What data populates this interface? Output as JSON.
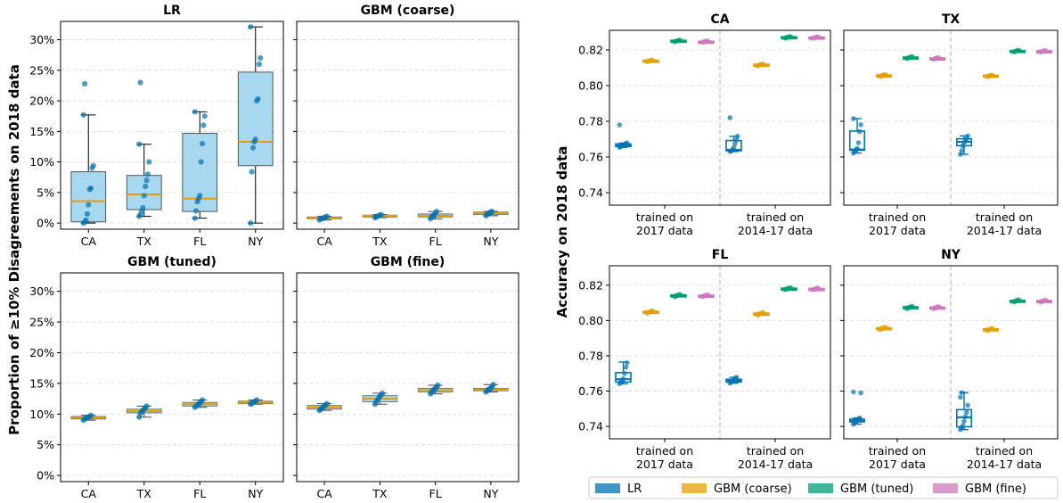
{
  "colors": {
    "lr": "#0173B2",
    "lr_fill": "#A8D8F0",
    "gbm_coarse": "#E69F00",
    "gbm_tuned": "#029E73",
    "gbm_fine": "#CC78BC",
    "median": "#E69F00",
    "grid": "#d8d8d8",
    "divider": "#b0b0b0"
  },
  "left": {
    "ylabel": "Proportion of ≥10% Disagreements on 2018 data",
    "yticks": [
      "0%",
      "5%",
      "10%",
      "15%",
      "20%",
      "25%",
      "30%"
    ],
    "categories": [
      "CA",
      "TX",
      "FL",
      "NY"
    ]
  },
  "right": {
    "ylabel": "Accuracy on 2018 data",
    "groups": [
      [
        "trained on",
        "2017 data"
      ],
      [
        "trained on",
        "2014-17 data"
      ]
    ],
    "yticks_top": [
      "0.74",
      "0.76",
      "0.78",
      "0.80",
      "0.82"
    ],
    "yticks_bottom": [
      "0.74",
      "0.76",
      "0.78",
      "0.80",
      "0.82"
    ]
  },
  "legend": [
    {
      "label": "LR",
      "color": "#0173B2"
    },
    {
      "label": "GBM (coarse)",
      "color": "#E69F00"
    },
    {
      "label": "GBM (tuned)",
      "color": "#029E73"
    },
    {
      "label": "GBM (fine)",
      "color": "#CC78BC"
    }
  ],
  "chart_data": [
    {
      "type": "box",
      "title": "LR",
      "ylabel": "Proportion of ≥10% Disagreements on 2018 data",
      "ylim": [
        -0.01,
        0.33
      ],
      "categories": [
        "CA",
        "TX",
        "FL",
        "NY"
      ],
      "boxes": [
        {
          "q1": 0.002,
          "median": 0.036,
          "q3": 0.084,
          "whislo": 0.0,
          "whishi": 0.177,
          "points": [
            0.0,
            0.002,
            0.005,
            0.015,
            0.03,
            0.055,
            0.057,
            0.09,
            0.094,
            0.177,
            0.228
          ]
        },
        {
          "q1": 0.022,
          "median": 0.047,
          "q3": 0.078,
          "whislo": 0.011,
          "whishi": 0.129,
          "points": [
            0.011,
            0.014,
            0.02,
            0.025,
            0.045,
            0.06,
            0.07,
            0.08,
            0.1,
            0.129,
            0.23
          ]
        },
        {
          "q1": 0.019,
          "median": 0.04,
          "q3": 0.147,
          "whislo": 0.008,
          "whishi": 0.182,
          "points": [
            0.008,
            0.02,
            0.035,
            0.04,
            0.045,
            0.1,
            0.13,
            0.16,
            0.175,
            0.182
          ]
        },
        {
          "q1": 0.094,
          "median": 0.133,
          "q3": 0.247,
          "whislo": 0.0,
          "whishi": 0.321,
          "points": [
            0.0,
            0.084,
            0.123,
            0.133,
            0.137,
            0.2,
            0.203,
            0.26,
            0.27,
            0.321
          ]
        }
      ]
    },
    {
      "type": "box",
      "title": "GBM (coarse)",
      "ylim": [
        -0.01,
        0.33
      ],
      "categories": [
        "CA",
        "TX",
        "FL",
        "NY"
      ],
      "boxes": [
        {
          "q1": 0.007,
          "median": 0.008,
          "q3": 0.01,
          "whislo": 0.005,
          "whishi": 0.011,
          "points": [
            0.005,
            0.007,
            0.008,
            0.008,
            0.009,
            0.01,
            0.011
          ]
        },
        {
          "q1": 0.01,
          "median": 0.012,
          "q3": 0.013,
          "whislo": 0.009,
          "whishi": 0.014,
          "points": [
            0.009,
            0.01,
            0.011,
            0.012,
            0.013,
            0.014
          ]
        },
        {
          "q1": 0.01,
          "median": 0.012,
          "q3": 0.015,
          "whislo": 0.007,
          "whishi": 0.019,
          "points": [
            0.007,
            0.01,
            0.012,
            0.013,
            0.016,
            0.019
          ]
        },
        {
          "q1": 0.014,
          "median": 0.016,
          "q3": 0.018,
          "whislo": 0.012,
          "whishi": 0.019,
          "points": [
            0.012,
            0.014,
            0.016,
            0.017,
            0.018,
            0.019
          ]
        }
      ]
    },
    {
      "type": "box",
      "title": "GBM (tuned)",
      "ylabel": "Proportion of ≥10% Disagreements on 2018 data",
      "ylim": [
        -0.01,
        0.33
      ],
      "categories": [
        "CA",
        "TX",
        "FL",
        "NY"
      ],
      "boxes": [
        {
          "q1": 0.092,
          "median": 0.094,
          "q3": 0.096,
          "whislo": 0.09,
          "whishi": 0.098,
          "points": [
            0.09,
            0.092,
            0.093,
            0.094,
            0.095,
            0.096,
            0.098
          ]
        },
        {
          "q1": 0.102,
          "median": 0.105,
          "q3": 0.108,
          "whislo": 0.095,
          "whishi": 0.113,
          "points": [
            0.095,
            0.101,
            0.104,
            0.106,
            0.108,
            0.11,
            0.113
          ]
        },
        {
          "q1": 0.113,
          "median": 0.116,
          "q3": 0.119,
          "whislo": 0.111,
          "whishi": 0.123,
          "points": [
            0.111,
            0.113,
            0.115,
            0.117,
            0.118,
            0.12,
            0.123
          ]
        },
        {
          "q1": 0.117,
          "median": 0.119,
          "q3": 0.121,
          "whislo": 0.116,
          "whishi": 0.123,
          "points": [
            0.116,
            0.117,
            0.119,
            0.12,
            0.121,
            0.123
          ]
        }
      ]
    },
    {
      "type": "box",
      "title": "GBM (fine)",
      "ylim": [
        -0.01,
        0.33
      ],
      "categories": [
        "CA",
        "TX",
        "FL",
        "NY"
      ],
      "boxes": [
        {
          "q1": 0.108,
          "median": 0.111,
          "q3": 0.114,
          "whislo": 0.106,
          "whishi": 0.117,
          "points": [
            0.106,
            0.108,
            0.11,
            0.112,
            0.113,
            0.115,
            0.117
          ]
        },
        {
          "q1": 0.12,
          "median": 0.125,
          "q3": 0.13,
          "whislo": 0.116,
          "whishi": 0.134,
          "points": [
            0.116,
            0.12,
            0.123,
            0.126,
            0.129,
            0.131,
            0.134
          ]
        },
        {
          "q1": 0.136,
          "median": 0.139,
          "q3": 0.142,
          "whislo": 0.133,
          "whishi": 0.147,
          "points": [
            0.133,
            0.136,
            0.138,
            0.14,
            0.142,
            0.144,
            0.147
          ]
        },
        {
          "q1": 0.138,
          "median": 0.14,
          "q3": 0.142,
          "whislo": 0.136,
          "whishi": 0.148,
          "points": [
            0.136,
            0.138,
            0.14,
            0.141,
            0.142,
            0.145,
            0.148
          ]
        }
      ]
    },
    {
      "type": "box",
      "title": "CA",
      "ylabel": "Accuracy on 2018 data",
      "ylim": [
        0.733,
        0.831
      ],
      "groups": [
        "trained on 2017 data",
        "trained on 2014-17 data"
      ],
      "series": [
        "LR",
        "GBM (coarse)",
        "GBM (tuned)",
        "GBM (fine)"
      ],
      "boxes": [
        [
          {
            "q1": 0.7659,
            "median": 0.7664,
            "q3": 0.7673,
            "whislo": 0.7654,
            "whishi": 0.7678,
            "points": [
              0.7654,
              0.7658,
              0.7661,
              0.7665,
              0.767,
              0.7675,
              0.7678,
              0.778
            ]
          },
          {
            "q1": 0.8136,
            "median": 0.8139,
            "q3": 0.8142,
            "whislo": 0.8134,
            "whishi": 0.8145,
            "points": [
              0.8134,
              0.8137,
              0.8139,
              0.8141,
              0.8144
            ]
          },
          {
            "q1": 0.8248,
            "median": 0.8251,
            "q3": 0.8254,
            "whislo": 0.8246,
            "whishi": 0.8256,
            "points": [
              0.8246,
              0.8249,
              0.8251,
              0.8253,
              0.8256
            ]
          },
          {
            "q1": 0.8244,
            "median": 0.8246,
            "q3": 0.8249,
            "whislo": 0.8242,
            "whishi": 0.8251,
            "points": [
              0.8242,
              0.8245,
              0.8247,
              0.8249,
              0.8251
            ]
          }
        ],
        [
          {
            "q1": 0.7635,
            "median": 0.764,
            "q3": 0.7692,
            "whislo": 0.763,
            "whishi": 0.7716,
            "points": [
              0.763,
              0.7635,
              0.764,
              0.7652,
              0.7675,
              0.7695,
              0.7716,
              0.782
            ]
          },
          {
            "q1": 0.8113,
            "median": 0.8116,
            "q3": 0.812,
            "whislo": 0.811,
            "whishi": 0.8122,
            "points": [
              0.811,
              0.8114,
              0.8116,
              0.8119,
              0.8122
            ]
          },
          {
            "q1": 0.8268,
            "median": 0.8271,
            "q3": 0.8274,
            "whislo": 0.8266,
            "whishi": 0.8276,
            "points": [
              0.8266,
              0.8269,
              0.8271,
              0.8273,
              0.8276
            ]
          },
          {
            "q1": 0.8267,
            "median": 0.8269,
            "q3": 0.8272,
            "whislo": 0.8265,
            "whishi": 0.8274,
            "points": [
              0.8265,
              0.8268,
              0.827,
              0.8272,
              0.8274
            ]
          }
        ]
      ]
    },
    {
      "type": "box",
      "title": "TX",
      "ylim": [
        0.733,
        0.831
      ],
      "groups": [
        "trained on 2017 data",
        "trained on 2014-17 data"
      ],
      "series": [
        "LR",
        "GBM (coarse)",
        "GBM (tuned)",
        "GBM (fine)"
      ],
      "boxes": [
        [
          {
            "q1": 0.7638,
            "median": 0.7642,
            "q3": 0.7745,
            "whislo": 0.7622,
            "whishi": 0.7815,
            "points": [
              0.7622,
              0.7632,
              0.764,
              0.7648,
              0.768,
              0.7742,
              0.7781,
              0.7815
            ]
          },
          {
            "q1": 0.8054,
            "median": 0.8057,
            "q3": 0.806,
            "whislo": 0.8051,
            "whishi": 0.8063,
            "points": [
              0.8051,
              0.8055,
              0.8057,
              0.806,
              0.8063
            ]
          },
          {
            "q1": 0.8154,
            "median": 0.8157,
            "q3": 0.816,
            "whislo": 0.8151,
            "whishi": 0.8163,
            "points": [
              0.8151,
              0.8155,
              0.8157,
              0.816,
              0.8163
            ]
          },
          {
            "q1": 0.815,
            "median": 0.8153,
            "q3": 0.8155,
            "whislo": 0.8148,
            "whishi": 0.8157,
            "points": [
              0.8148,
              0.8151,
              0.8153,
              0.8155,
              0.8157
            ]
          }
        ],
        [
          {
            "q1": 0.7663,
            "median": 0.7685,
            "q3": 0.7702,
            "whislo": 0.7615,
            "whishi": 0.7718,
            "points": [
              0.7615,
              0.7635,
              0.7662,
              0.768,
              0.769,
              0.77,
              0.7718
            ]
          },
          {
            "q1": 0.8052,
            "median": 0.8055,
            "q3": 0.8058,
            "whislo": 0.805,
            "whishi": 0.806,
            "points": [
              0.805,
              0.8053,
              0.8055,
              0.8058,
              0.806
            ]
          },
          {
            "q1": 0.8191,
            "median": 0.8194,
            "q3": 0.8197,
            "whislo": 0.8189,
            "whishi": 0.8199,
            "points": [
              0.8189,
              0.8192,
              0.8194,
              0.8196,
              0.8199
            ]
          },
          {
            "q1": 0.819,
            "median": 0.8192,
            "q3": 0.8195,
            "whislo": 0.8188,
            "whishi": 0.8197,
            "points": [
              0.8188,
              0.8191,
              0.8193,
              0.8195,
              0.8197
            ]
          }
        ]
      ]
    },
    {
      "type": "box",
      "title": "FL",
      "ylabel": "Accuracy on 2018 data",
      "ylim": [
        0.733,
        0.831
      ],
      "groups": [
        "trained on 2017 data",
        "trained on 2014-17 data"
      ],
      "series": [
        "LR",
        "GBM (coarse)",
        "GBM (tuned)",
        "GBM (fine)"
      ],
      "boxes": [
        [
          {
            "q1": 0.7652,
            "median": 0.7668,
            "q3": 0.7705,
            "whislo": 0.7642,
            "whishi": 0.7765,
            "points": [
              0.7642,
              0.765,
              0.7658,
              0.767,
              0.77,
              0.7735,
              0.776
            ]
          },
          {
            "q1": 0.8045,
            "median": 0.8048,
            "q3": 0.8052,
            "whislo": 0.8042,
            "whishi": 0.8055,
            "points": [
              0.8042,
              0.8046,
              0.8048,
              0.8051,
              0.8055
            ]
          },
          {
            "q1": 0.8138,
            "median": 0.8141,
            "q3": 0.8145,
            "whislo": 0.8135,
            "whishi": 0.8148,
            "points": [
              0.8135,
              0.8139,
              0.8141,
              0.8144,
              0.8148
            ]
          },
          {
            "q1": 0.8137,
            "median": 0.814,
            "q3": 0.8143,
            "whislo": 0.8134,
            "whishi": 0.8146,
            "points": [
              0.8134,
              0.8138,
              0.814,
              0.8143,
              0.8146
            ]
          }
        ],
        [
          {
            "q1": 0.7652,
            "median": 0.7659,
            "q3": 0.7667,
            "whislo": 0.7645,
            "whishi": 0.7678,
            "points": [
              0.7645,
              0.7652,
              0.7658,
              0.7664,
              0.7672,
              0.7678
            ]
          },
          {
            "q1": 0.8034,
            "median": 0.8038,
            "q3": 0.8042,
            "whislo": 0.803,
            "whishi": 0.8046,
            "points": [
              0.803,
              0.8035,
              0.8038,
              0.8041,
              0.8046
            ]
          },
          {
            "q1": 0.8178,
            "median": 0.818,
            "q3": 0.8183,
            "whislo": 0.8175,
            "whishi": 0.8186,
            "points": [
              0.8175,
              0.8178,
              0.818,
              0.8183,
              0.8186
            ]
          },
          {
            "q1": 0.8176,
            "median": 0.8179,
            "q3": 0.8181,
            "whislo": 0.8174,
            "whishi": 0.8184,
            "points": [
              0.8174,
              0.8177,
              0.8179,
              0.8181,
              0.8184
            ]
          }
        ]
      ]
    },
    {
      "type": "box",
      "title": "NY",
      "ylim": [
        0.733,
        0.831
      ],
      "groups": [
        "trained on 2017 data",
        "trained on 2014-17 data"
      ],
      "series": [
        "LR",
        "GBM (coarse)",
        "GBM (tuned)",
        "GBM (fine)"
      ],
      "boxes": [
        [
          {
            "q1": 0.7426,
            "median": 0.7432,
            "q3": 0.7441,
            "whislo": 0.7413,
            "whishi": 0.7448,
            "points": [
              0.7413,
              0.742,
              0.7428,
              0.7434,
              0.744,
              0.7448,
              0.759,
              0.7595
            ]
          },
          {
            "q1": 0.7952,
            "median": 0.7956,
            "q3": 0.7959,
            "whislo": 0.7948,
            "whishi": 0.7962,
            "points": [
              0.7948,
              0.7953,
              0.7956,
              0.7959,
              0.7962
            ]
          },
          {
            "q1": 0.8071,
            "median": 0.8074,
            "q3": 0.8078,
            "whislo": 0.8067,
            "whishi": 0.8081,
            "points": [
              0.8067,
              0.8072,
              0.8074,
              0.8077,
              0.8081
            ]
          },
          {
            "q1": 0.807,
            "median": 0.8073,
            "q3": 0.8076,
            "whislo": 0.8067,
            "whishi": 0.8079,
            "points": [
              0.8067,
              0.8071,
              0.8073,
              0.8076,
              0.8079
            ]
          }
        ],
        [
          {
            "q1": 0.7398,
            "median": 0.7452,
            "q3": 0.7495,
            "whislo": 0.7382,
            "whishi": 0.7592,
            "points": [
              0.7382,
              0.7392,
              0.7405,
              0.743,
              0.7455,
              0.748,
              0.752,
              0.7565,
              0.7592
            ]
          },
          {
            "q1": 0.7946,
            "median": 0.7949,
            "q3": 0.7953,
            "whislo": 0.7943,
            "whishi": 0.7956,
            "points": [
              0.7943,
              0.7947,
              0.7949,
              0.7952,
              0.7956
            ]
          },
          {
            "q1": 0.8108,
            "median": 0.8111,
            "q3": 0.8114,
            "whislo": 0.8105,
            "whishi": 0.8117,
            "points": [
              0.8105,
              0.8109,
              0.8111,
              0.8114,
              0.8117
            ]
          },
          {
            "q1": 0.8107,
            "median": 0.811,
            "q3": 0.8113,
            "whislo": 0.8104,
            "whishi": 0.8116,
            "points": [
              0.8104,
              0.8108,
              0.811,
              0.8113,
              0.8116
            ]
          }
        ]
      ]
    }
  ]
}
